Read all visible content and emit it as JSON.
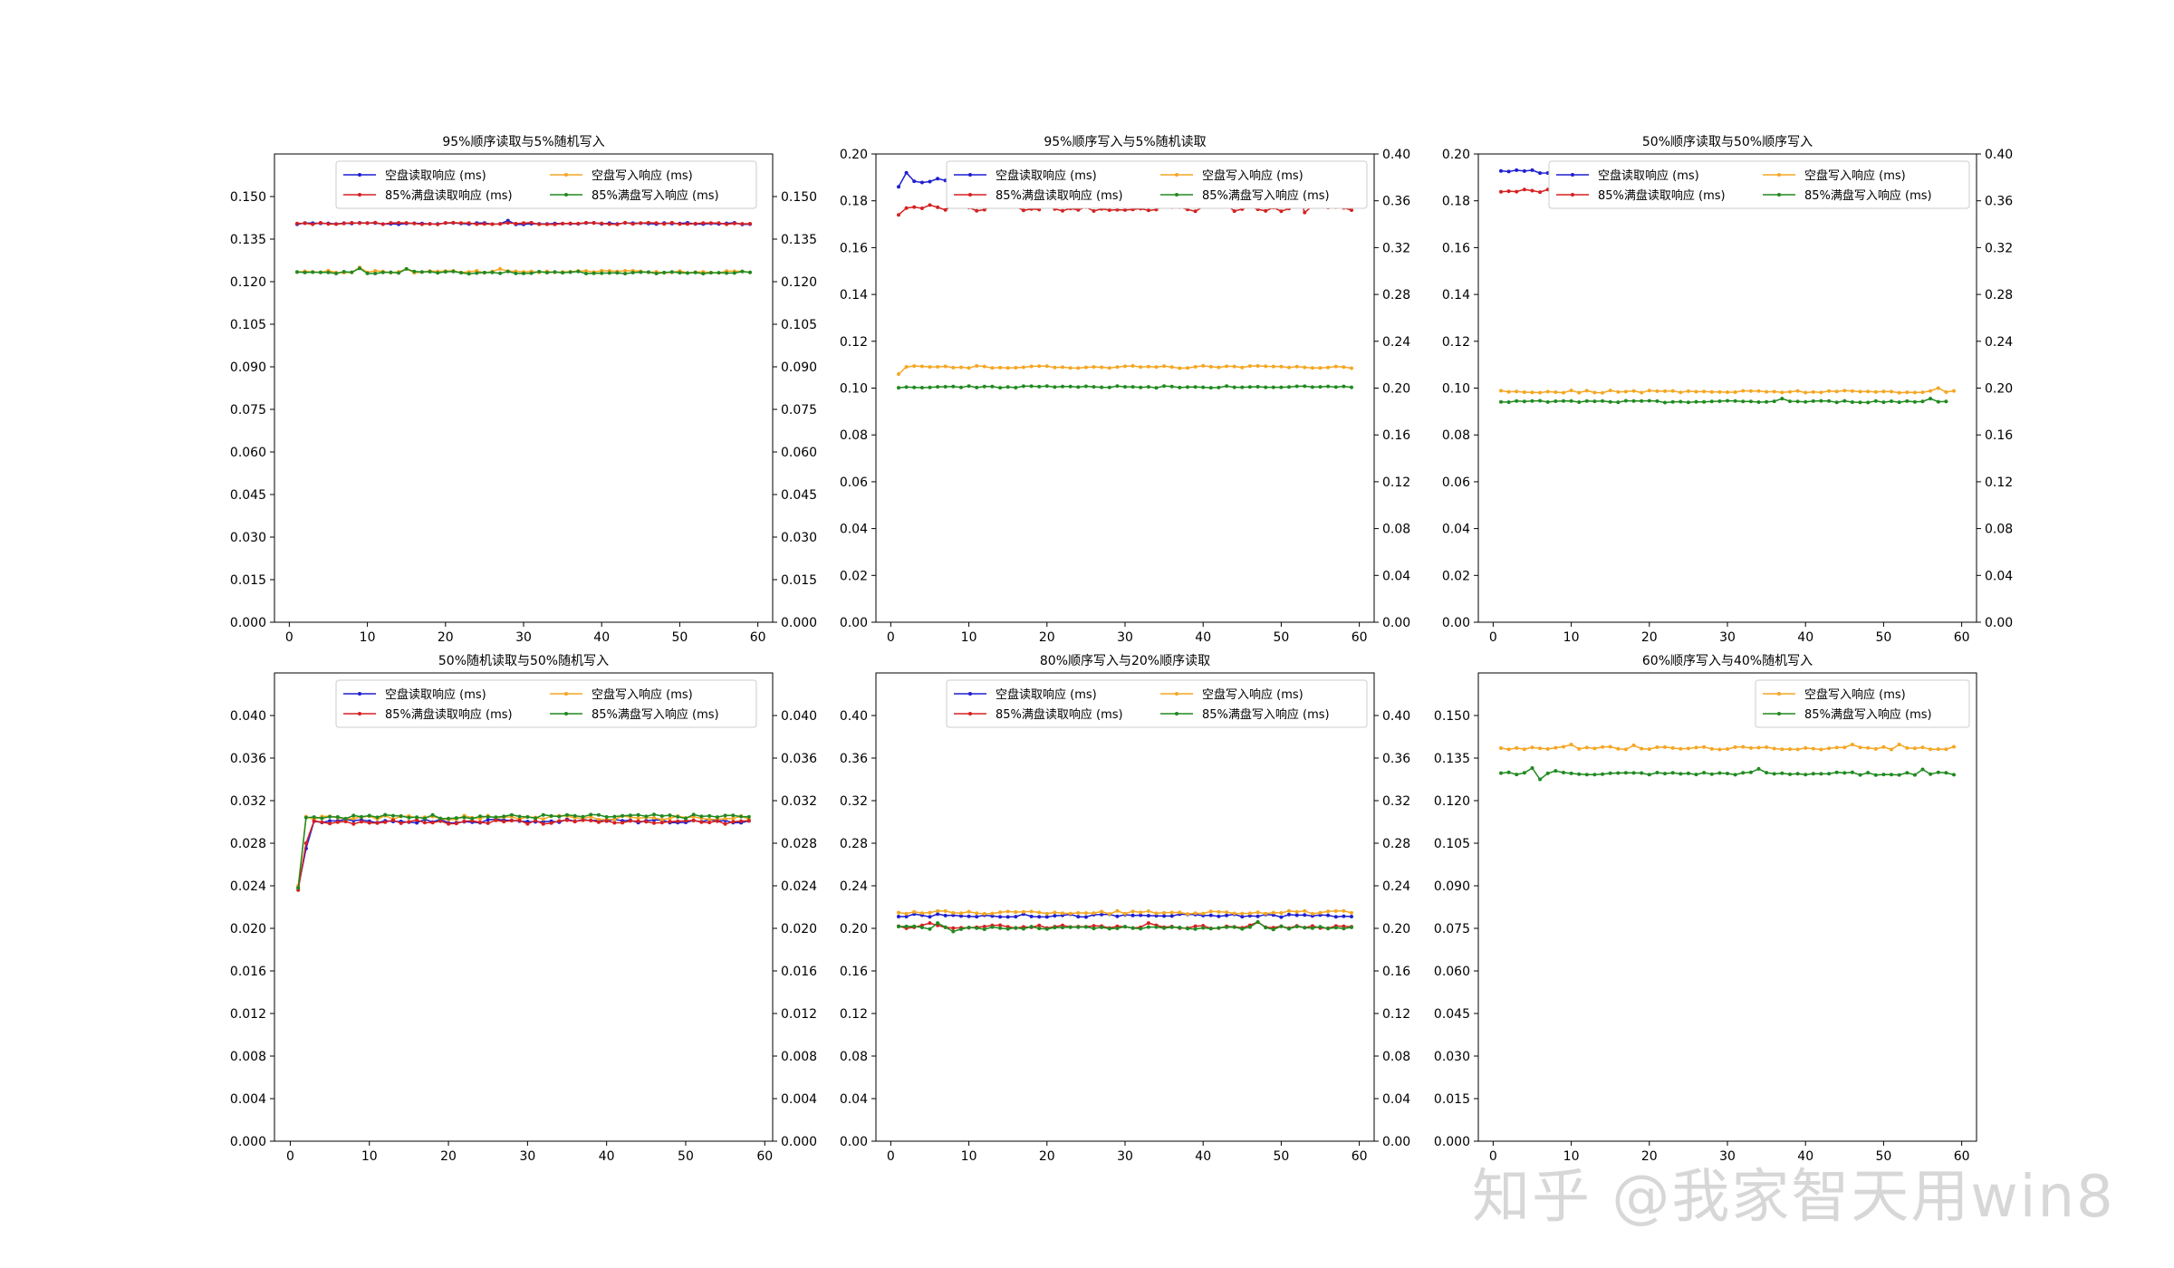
{
  "colors": {
    "blue": "#1f1fd0",
    "red": "#d62020",
    "orange": "#f5a623",
    "green": "#208a20"
  },
  "watermark": "知乎 @我家智天用win8",
  "chart_data": [
    {
      "type": "line",
      "title": "95%顺序读取与5%随机写入",
      "xlim": [
        -1.9,
        61.9
      ],
      "xticks": [
        0,
        10,
        20,
        30,
        40,
        50,
        60
      ],
      "ylim": [
        0,
        0.165
      ],
      "yticks": [
        0,
        0.015,
        0.03,
        0.045,
        0.06,
        0.075,
        0.09,
        0.105,
        0.12,
        0.135,
        0.15
      ],
      "ytick_decimals": 3,
      "y2lim": [
        0,
        0.165
      ],
      "y2ticks": [
        0,
        0.015,
        0.03,
        0.045,
        0.06,
        0.075,
        0.09,
        0.105,
        0.12,
        0.135,
        0.15
      ],
      "legend": {
        "placement": "upper center",
        "columns": 2
      },
      "series": [
        {
          "name": "空盘读取响应 (ms)",
          "color": "blue",
          "axis": "left",
          "base": 0.1405,
          "jitter": 0.0003,
          "n": 59,
          "spikes": [
            [
              28,
              0.1415
            ]
          ]
        },
        {
          "name": "空盘写入响应 (ms)",
          "color": "orange",
          "axis": "left",
          "base": 0.1235,
          "jitter": 0.0004,
          "n": 59,
          "spikes": [
            [
              9,
              0.125
            ],
            [
              15,
              0.1245
            ],
            [
              27,
              0.1245
            ]
          ]
        },
        {
          "name": "85%满盘读取响应 (ms)",
          "color": "red",
          "axis": "left",
          "base": 0.1405,
          "jitter": 0.0003,
          "n": 59,
          "spikes": []
        },
        {
          "name": "85%满盘写入响应 (ms)",
          "color": "green",
          "axis": "left",
          "base": 0.1232,
          "jitter": 0.0004,
          "n": 59,
          "spikes": [
            [
              9,
              0.1247
            ],
            [
              15,
              0.1245
            ]
          ]
        }
      ]
    },
    {
      "type": "line",
      "title": "95%顺序写入与5%随机读取",
      "xlim": [
        -1.9,
        61.9
      ],
      "xticks": [
        0,
        10,
        20,
        30,
        40,
        50,
        60
      ],
      "ylim": [
        0,
        0.2
      ],
      "yticks": [
        0,
        0.02,
        0.04,
        0.06,
        0.08,
        0.1,
        0.12,
        0.14,
        0.16,
        0.18,
        0.2
      ],
      "ytick_decimals": 2,
      "y2lim": [
        0,
        0.4
      ],
      "y2ticks": [
        0,
        0.04,
        0.08,
        0.12,
        0.16,
        0.2,
        0.24,
        0.28,
        0.32,
        0.36,
        0.4
      ],
      "legend": {
        "placement": "upper right",
        "columns": 2
      },
      "series": [
        {
          "name": "空盘读取响应 (ms)",
          "color": "blue",
          "axis": "left",
          "base": 0.189,
          "jitter": 0.0015,
          "n": 59,
          "spikes": [
            [
              1,
              0.186
            ],
            [
              2,
              0.192
            ],
            [
              38,
              0.193
            ],
            [
              35,
              0.187
            ]
          ]
        },
        {
          "name": "空盘写入响应 (ms)",
          "color": "orange",
          "axis": "left",
          "base": 0.109,
          "jitter": 0.0005,
          "n": 59,
          "spikes": [
            [
              1,
              0.106
            ]
          ]
        },
        {
          "name": "85%满盘读取响应 (ms)",
          "color": "red",
          "axis": "left",
          "base": 0.177,
          "jitter": 0.0015,
          "n": 59,
          "spikes": [
            [
              1,
              0.174
            ],
            [
              9,
              0.182
            ],
            [
              20,
              0.18
            ],
            [
              52,
              0.185
            ],
            [
              53,
              0.175
            ],
            [
              58,
              0.177
            ]
          ]
        },
        {
          "name": "85%满盘写入响应 (ms)",
          "color": "green",
          "axis": "left",
          "base": 0.1005,
          "jitter": 0.0004,
          "n": 59,
          "spikes": []
        }
      ]
    },
    {
      "type": "line",
      "title": "50%顺序读取与50%顺序写入",
      "xlim": [
        -1.9,
        61.9
      ],
      "xticks": [
        0,
        10,
        20,
        30,
        40,
        50,
        60
      ],
      "ylim": [
        0,
        0.2
      ],
      "yticks": [
        0,
        0.02,
        0.04,
        0.06,
        0.08,
        0.1,
        0.12,
        0.14,
        0.16,
        0.18,
        0.2
      ],
      "ytick_decimals": 2,
      "y2lim": [
        0,
        0.4
      ],
      "y2ticks": [
        0,
        0.04,
        0.08,
        0.12,
        0.16,
        0.2,
        0.24,
        0.28,
        0.32,
        0.36,
        0.4
      ],
      "legend": {
        "placement": "upper right",
        "columns": 2
      },
      "series": [
        {
          "name": "空盘读取响应 (ms)",
          "color": "blue",
          "axis": "left",
          "base": 0.1925,
          "jitter": 0.0008,
          "n": 59,
          "spikes": [
            [
              11,
              0.194
            ]
          ]
        },
        {
          "name": "空盘写入响应 (ms)",
          "color": "orange",
          "axis": "left",
          "base": 0.0985,
          "jitter": 0.0005,
          "n": 59,
          "spikes": [
            [
              57,
              0.1
            ]
          ]
        },
        {
          "name": "85%满盘读取响应 (ms)",
          "color": "red",
          "axis": "left",
          "base": 0.1843,
          "jitter": 0.0006,
          "n": 58,
          "spikes": [
            [
              37,
              0.187
            ]
          ]
        },
        {
          "name": "85%满盘写入响应 (ms)",
          "color": "green",
          "axis": "left",
          "base": 0.0942,
          "jitter": 0.0004,
          "n": 58,
          "spikes": [
            [
              37,
              0.0955
            ],
            [
              56,
              0.0955
            ]
          ]
        }
      ]
    },
    {
      "type": "line",
      "title": "50%随机读取与50%随机写入",
      "xlim": [
        -2.0,
        61.0
      ],
      "xticks": [
        0,
        10,
        20,
        30,
        40,
        50,
        60
      ],
      "ylim": [
        0,
        0.044
      ],
      "yticks": [
        0,
        0.004,
        0.008,
        0.012,
        0.016,
        0.02,
        0.024,
        0.028,
        0.032,
        0.036,
        0.04
      ],
      "ytick_decimals": 3,
      "y2lim": [
        0,
        0.044
      ],
      "y2ticks": [
        0,
        0.004,
        0.008,
        0.012,
        0.016,
        0.02,
        0.024,
        0.028,
        0.032,
        0.036,
        0.04
      ],
      "legend": {
        "placement": "upper center",
        "columns": 2
      },
      "series": [
        {
          "name": "空盘读取响应 (ms)",
          "color": "blue",
          "axis": "left",
          "base": 0.0301,
          "jitter": 0.0002,
          "n": 58,
          "start": [
            0.0238,
            0.0275
          ]
        },
        {
          "name": "空盘写入响应 (ms)",
          "color": "orange",
          "axis": "left",
          "base": 0.0304,
          "jitter": 0.0002,
          "n": 58,
          "start": [
            0.024,
            0.0305
          ]
        },
        {
          "name": "85%满盘读取响应 (ms)",
          "color": "red",
          "axis": "left",
          "base": 0.03,
          "jitter": 0.0002,
          "n": 58,
          "start": [
            0.0236,
            0.028
          ]
        },
        {
          "name": "85%满盘写入响应 (ms)",
          "color": "green",
          "axis": "left",
          "base": 0.0305,
          "jitter": 0.0002,
          "n": 58,
          "start": [
            0.0238,
            0.0304
          ]
        }
      ]
    },
    {
      "type": "line",
      "title": "80%顺序写入与20%顺序读取",
      "xlim": [
        -1.9,
        61.9
      ],
      "xticks": [
        0,
        10,
        20,
        30,
        40,
        50,
        60
      ],
      "ylim": [
        0,
        0.44
      ],
      "yticks": [
        0,
        0.04,
        0.08,
        0.12,
        0.16,
        0.2,
        0.24,
        0.28,
        0.32,
        0.36,
        0.4
      ],
      "ytick_decimals": 2,
      "y2lim": [
        0,
        0.44
      ],
      "y2ticks": [
        0,
        0.04,
        0.08,
        0.12,
        0.16,
        0.2,
        0.24,
        0.28,
        0.32,
        0.36,
        0.4
      ],
      "legend": {
        "placement": "upper right",
        "columns": 2
      },
      "series": [
        {
          "name": "空盘读取响应 (ms)",
          "color": "blue",
          "axis": "left",
          "base": 0.212,
          "jitter": 0.0015,
          "n": 59,
          "spikes": []
        },
        {
          "name": "空盘写入响应 (ms)",
          "color": "orange",
          "axis": "left",
          "base": 0.215,
          "jitter": 0.0015,
          "n": 59,
          "spikes": []
        },
        {
          "name": "85%满盘读取响应 (ms)",
          "color": "red",
          "axis": "left",
          "base": 0.2015,
          "jitter": 0.0015,
          "n": 59,
          "spikes": [
            [
              5,
              0.205
            ],
            [
              33,
              0.205
            ],
            [
              47,
              0.206
            ]
          ]
        },
        {
          "name": "85%满盘写入响应 (ms)",
          "color": "green",
          "axis": "left",
          "base": 0.2005,
          "jitter": 0.0015,
          "n": 59,
          "spikes": [
            [
              6,
              0.205
            ],
            [
              8,
              0.197
            ],
            [
              47,
              0.206
            ]
          ]
        }
      ]
    },
    {
      "type": "line",
      "title": "60%顺序写入与40%随机写入",
      "xlim": [
        -1.9,
        61.9
      ],
      "xticks": [
        0,
        10,
        20,
        30,
        40,
        50,
        60
      ],
      "ylim": [
        0,
        0.165
      ],
      "yticks": [
        0,
        0.015,
        0.03,
        0.045,
        0.06,
        0.075,
        0.09,
        0.105,
        0.12,
        0.135,
        0.15
      ],
      "ytick_decimals": 3,
      "y2lim": null,
      "y2ticks": [],
      "legend": {
        "placement": "upper right",
        "columns": 1
      },
      "series": [
        {
          "name": "空盘写入响应 (ms)",
          "color": "orange",
          "axis": "left",
          "base": 0.1385,
          "jitter": 0.0005,
          "n": 59,
          "spikes": [
            [
              1,
              0.1385
            ],
            [
              10,
              0.1398
            ],
            [
              18,
              0.1395
            ],
            [
              46,
              0.1398
            ],
            [
              52,
              0.1398
            ]
          ]
        },
        {
          "name": "85%满盘写入响应 (ms)",
          "color": "green",
          "axis": "left",
          "base": 0.1295,
          "jitter": 0.0005,
          "n": 59,
          "spikes": [
            [
              5,
              0.1315
            ],
            [
              6,
              0.1275
            ],
            [
              8,
              0.1305
            ],
            [
              34,
              0.1312
            ],
            [
              55,
              0.131
            ]
          ]
        }
      ]
    }
  ]
}
